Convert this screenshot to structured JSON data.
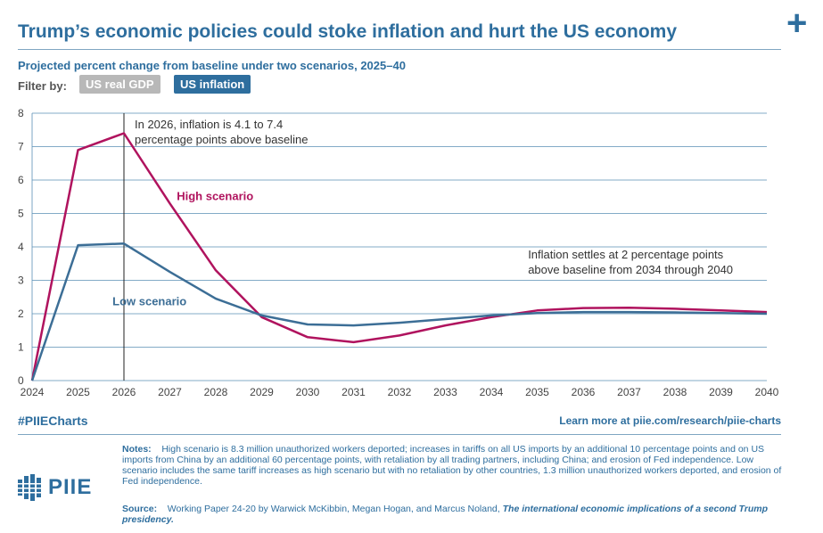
{
  "header": {
    "title": "Trump’s economic policies could stoke inflation and hurt the US economy",
    "subtitle": "Projected percent change from baseline under two scenarios, 2025–40"
  },
  "filter": {
    "label": "Filter by:",
    "options": [
      "US real GDP",
      "US inflation"
    ],
    "selected": "US inflation"
  },
  "chart_data": {
    "type": "line",
    "x": [
      2024,
      2025,
      2026,
      2027,
      2028,
      2029,
      2030,
      2031,
      2032,
      2033,
      2034,
      2035,
      2036,
      2037,
      2038,
      2039,
      2040
    ],
    "ylim": [
      0,
      8
    ],
    "yticks": [
      0,
      1,
      2,
      3,
      4,
      5,
      6,
      7,
      8
    ],
    "grid": true,
    "series": [
      {
        "name": "High scenario",
        "color": "#b0135e",
        "values": [
          0,
          6.9,
          7.4,
          5.3,
          3.3,
          1.9,
          1.3,
          1.15,
          1.35,
          1.65,
          1.9,
          2.1,
          2.17,
          2.18,
          2.15,
          2.1,
          2.05
        ]
      },
      {
        "name": "Low scenario",
        "color": "#3c6e96",
        "values": [
          0,
          4.05,
          4.1,
          3.25,
          2.45,
          1.95,
          1.68,
          1.65,
          1.73,
          1.84,
          1.95,
          2.02,
          2.05,
          2.05,
          2.04,
          2.02,
          2.0
        ]
      }
    ],
    "annotations": {
      "vline_x": 2026,
      "peak_note_line1": "In 2026, inflation is 4.1 to 7.4",
      "peak_note_line2": "percentage points above baseline",
      "settle_note_line1": "Inflation settles at 2 percentage points",
      "settle_note_line2": "above baseline from 2034 through 2040"
    }
  },
  "footer": {
    "hashtag": "#PIIECharts",
    "learn_more": "Learn more at piie.com/research/piie-charts",
    "notes_label": "Notes:",
    "notes_text": "High scenario is 8.3 million unauthorized workers deported; increases in tariffs on all US imports by an additional 10 percentage points and on US imports from China by an additional 60 percentage points, with retaliation by all trading partners, including China; and erosion of Fed independence. Low scenario includes the same tariff increases as high scenario but with no retaliation by other countries, 1.3 million unauthorized workers deported, and erosion of Fed independence.",
    "source_label": "Source:",
    "source_text": "Working Paper 24-20 by Warwick McKibbin, Megan Hogan, and Marcus Noland,",
    "source_title": "The international economic implications of a second Trump presidency.",
    "logo_text": "PIIE"
  }
}
